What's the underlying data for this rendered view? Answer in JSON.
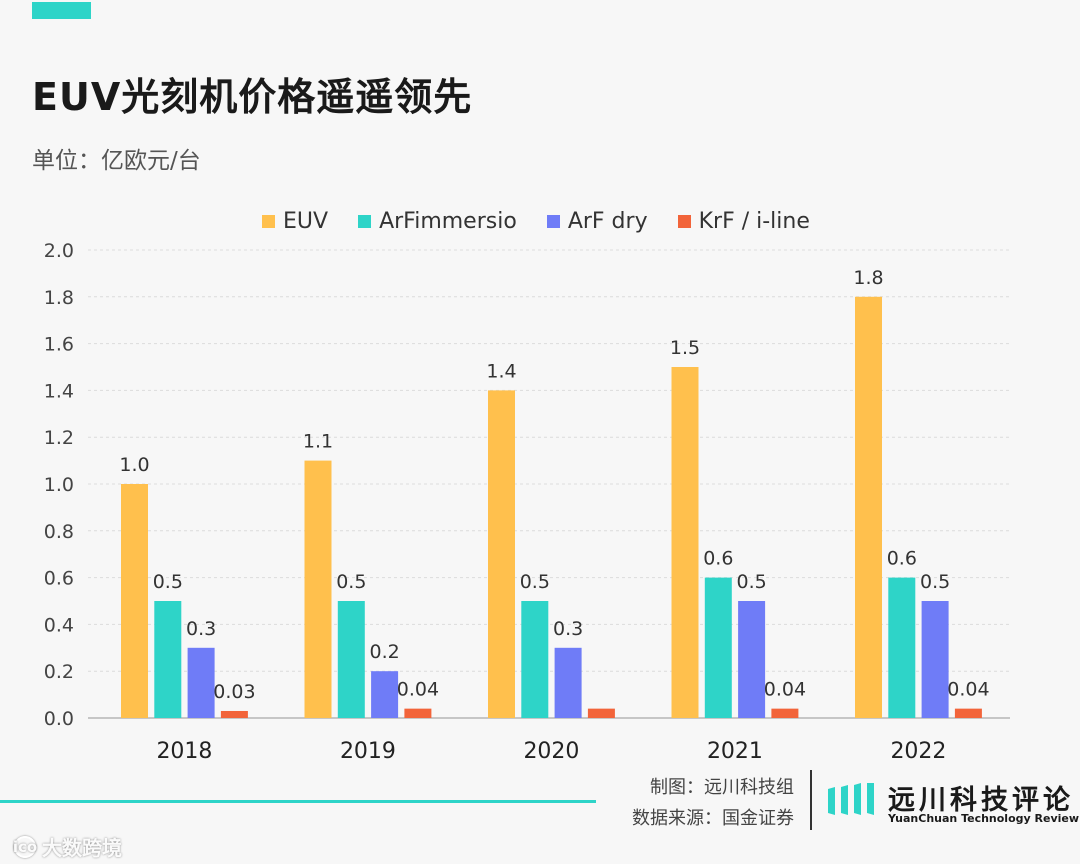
{
  "header": {
    "title": "EUV光刻机价格遥遥领先",
    "unit": "单位：亿欧元/台"
  },
  "colors": {
    "accent": "#2ed4c8",
    "EUV": "#ffc04d",
    "ArFimmersio": "#2ed4c8",
    "ArF dry": "#6f7cf7",
    "KrF / i-line": "#f2643a"
  },
  "chart_data": {
    "type": "bar",
    "categories": [
      "2018",
      "2019",
      "2020",
      "2021",
      "2022"
    ],
    "series": [
      {
        "name": "EUV",
        "values": [
          1.0,
          1.1,
          1.4,
          1.5,
          1.8
        ],
        "labels": [
          "1.0",
          "1.1",
          "1.4",
          "1.5",
          "1.8"
        ]
      },
      {
        "name": "ArFimmersio",
        "values": [
          0.5,
          0.5,
          0.5,
          0.6,
          0.6
        ],
        "labels": [
          "0.5",
          "0.5",
          "0.5",
          "0.6",
          "0.6"
        ]
      },
      {
        "name": "ArF dry",
        "values": [
          0.3,
          0.2,
          0.3,
          0.5,
          0.5
        ],
        "labels": [
          "0.3",
          "0.2",
          "0.3",
          "0.5",
          "0.5"
        ]
      },
      {
        "name": "KrF / i-line",
        "values": [
          0.03,
          0.04,
          0.04,
          0.04,
          0.04
        ],
        "labels": [
          "0.03",
          "0.04",
          "",
          "0.04",
          "0.04"
        ]
      }
    ],
    "ylim": [
      0,
      2.0
    ],
    "yticks": [
      "0.0",
      "0.2",
      "0.4",
      "0.6",
      "0.8",
      "1.0",
      "1.2",
      "1.4",
      "1.6",
      "1.8",
      "2.0"
    ],
    "grid": true,
    "legend_position": "top"
  },
  "footer": {
    "credit_chart": "制图：远川科技组",
    "credit_source": "数据来源：国金证券",
    "brand_name": "远川科技评论",
    "brand_sub": "YuanChuan Technology Review",
    "watermark": "大数跨境",
    "watermark_logo": "ico"
  }
}
